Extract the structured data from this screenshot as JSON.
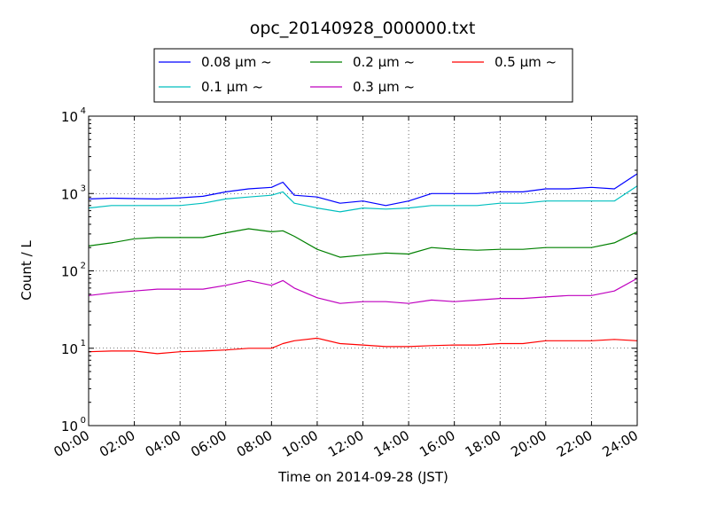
{
  "chart_data": {
    "type": "line",
    "title": "opc_20140928_000000.txt",
    "xlabel": "Time on 2014-09-28 (JST)",
    "ylabel": "Count / L",
    "yscale": "log",
    "ylim": [
      1,
      10000
    ],
    "xlim": [
      "00:00",
      "24:00"
    ],
    "grid": true,
    "legend_placement": "top-center",
    "x_ticks": [
      "00:00",
      "02:00",
      "04:00",
      "06:00",
      "08:00",
      "10:00",
      "12:00",
      "14:00",
      "16:00",
      "18:00",
      "20:00",
      "22:00",
      "24:00"
    ],
    "y_ticks": [
      {
        "value": 1,
        "base": "10",
        "exp": "0"
      },
      {
        "value": 10,
        "base": "10",
        "exp": "1"
      },
      {
        "value": 100,
        "base": "10",
        "exp": "2"
      },
      {
        "value": 1000,
        "base": "10",
        "exp": "3"
      },
      {
        "value": 10000,
        "base": "10",
        "exp": "4"
      }
    ],
    "x": [
      "00:00",
      "01:00",
      "02:00",
      "03:00",
      "04:00",
      "05:00",
      "06:00",
      "07:00",
      "08:00",
      "08:30",
      "09:00",
      "10:00",
      "11:00",
      "12:00",
      "13:00",
      "14:00",
      "15:00",
      "16:00",
      "17:00",
      "18:00",
      "19:00",
      "20:00",
      "21:00",
      "22:00",
      "23:00",
      "24:00"
    ],
    "series": [
      {
        "name": "0.08 μm ~",
        "color": "#0000ff",
        "values": [
          850,
          870,
          860,
          850,
          880,
          920,
          1050,
          1150,
          1200,
          1400,
          950,
          900,
          750,
          800,
          700,
          800,
          1000,
          1000,
          1000,
          1050,
          1050,
          1150,
          1150,
          1200,
          1150,
          1800
        ]
      },
      {
        "name": "0.1 μm ~",
        "color": "#00bfbf",
        "values": [
          650,
          700,
          700,
          700,
          700,
          750,
          850,
          900,
          950,
          1050,
          750,
          650,
          580,
          650,
          630,
          650,
          700,
          700,
          700,
          750,
          750,
          800,
          800,
          800,
          800,
          1250
        ]
      },
      {
        "name": "0.2 μm ~",
        "color": "#008000",
        "values": [
          210,
          230,
          260,
          270,
          270,
          270,
          310,
          350,
          320,
          330,
          280,
          190,
          150,
          160,
          170,
          165,
          200,
          190,
          185,
          190,
          190,
          200,
          200,
          200,
          230,
          320
        ]
      },
      {
        "name": "0.3 μm ~",
        "color": "#bf00bf",
        "values": [
          48,
          52,
          55,
          58,
          58,
          58,
          65,
          75,
          65,
          75,
          60,
          45,
          38,
          40,
          40,
          38,
          42,
          40,
          42,
          44,
          44,
          46,
          48,
          48,
          55,
          80
        ]
      },
      {
        "name": "0.5 μm ~",
        "color": "#ff0000",
        "values": [
          9,
          9.2,
          9.2,
          8.5,
          9,
          9.2,
          9.5,
          10,
          10,
          11.5,
          12.5,
          13.5,
          11.5,
          11,
          10.5,
          10.5,
          10.8,
          11,
          11,
          11.5,
          11.5,
          12.5,
          12.5,
          12.5,
          13,
          12.5
        ]
      }
    ]
  }
}
